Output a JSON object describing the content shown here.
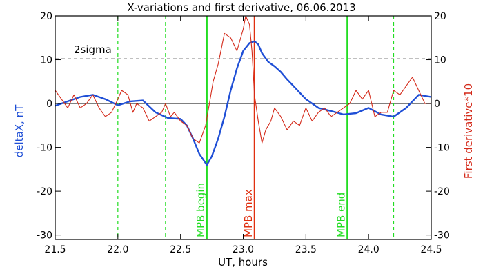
{
  "chart_data": {
    "type": "line",
    "title": "X-variations and first derivative, 06.06.2013",
    "xlabel": "UT, hours",
    "ylabel_left": "deltaX, nT",
    "ylabel_right": "First derivative*10",
    "xlim": [
      21.5,
      24.5
    ],
    "ylim": [
      -31,
      20
    ],
    "xticks": [
      "21.5",
      "22.0",
      "22.5",
      "23.0",
      "23.5",
      "24.0",
      "24.5"
    ],
    "yticks": [
      "-30",
      "-20",
      "-10",
      "0",
      "10",
      "20"
    ],
    "y2ticks": [
      "-30",
      "-20",
      "-10",
      "0",
      "10",
      "20"
    ],
    "grid": false,
    "colors": {
      "deltaX": "#1f4fd6",
      "derivative": "#d42a1a",
      "mpb_lines": "#22dd22",
      "mpb_max": "#e03010",
      "threshold": "#000000"
    },
    "threshold": {
      "label": "2sigma",
      "y": 10.2
    },
    "zero_line": 0,
    "vlines": [
      {
        "x": 22.0,
        "style": "dashed",
        "color": "#22dd22",
        "label": ""
      },
      {
        "x": 22.38,
        "style": "dashed",
        "color": "#22dd22",
        "label": ""
      },
      {
        "x": 22.71,
        "style": "solid",
        "color": "#22dd22",
        "label": "MPB begin"
      },
      {
        "x": 23.09,
        "style": "solid",
        "color": "#e03010",
        "label": "MPB max"
      },
      {
        "x": 23.83,
        "style": "solid",
        "color": "#22dd22",
        "label": "MPB end"
      },
      {
        "x": 24.2,
        "style": "dashed",
        "color": "#22dd22",
        "label": ""
      }
    ],
    "series": [
      {
        "key": "deltaX",
        "axis": "left",
        "x": [
          21.5,
          21.6,
          21.7,
          21.8,
          21.9,
          22.0,
          22.1,
          22.2,
          22.3,
          22.4,
          22.5,
          22.55,
          22.6,
          22.65,
          22.71,
          22.75,
          22.8,
          22.85,
          22.9,
          22.95,
          23.0,
          23.05,
          23.09,
          23.12,
          23.15,
          23.2,
          23.25,
          23.3,
          23.35,
          23.4,
          23.5,
          23.6,
          23.7,
          23.8,
          23.9,
          24.0,
          24.1,
          24.2,
          24.3,
          24.4,
          24.5
        ],
        "y": [
          -0.5,
          0.5,
          1.5,
          2,
          1,
          -0.4,
          0.5,
          0.7,
          -2,
          -3.3,
          -3.5,
          -5,
          -8,
          -11.5,
          -14,
          -12,
          -8,
          -3,
          3,
          8,
          12,
          13.8,
          14.2,
          13.5,
          11.5,
          9.5,
          8.5,
          7.2,
          5.5,
          4,
          1,
          -1,
          -1.7,
          -2.5,
          -2.2,
          -1,
          -2.5,
          -3,
          -1,
          2,
          1.5
        ]
      },
      {
        "key": "derivative",
        "axis": "right",
        "x": [
          21.5,
          21.55,
          21.6,
          21.65,
          21.7,
          21.75,
          21.8,
          21.85,
          21.9,
          21.95,
          22.0,
          22.03,
          22.08,
          22.12,
          22.15,
          22.2,
          22.25,
          22.3,
          22.35,
          22.38,
          22.42,
          22.45,
          22.5,
          22.55,
          22.6,
          22.65,
          22.7,
          22.73,
          22.76,
          22.8,
          22.85,
          22.9,
          22.95,
          23.0,
          23.02,
          23.05,
          23.07,
          23.09,
          23.12,
          23.15,
          23.18,
          23.22,
          23.25,
          23.3,
          23.35,
          23.4,
          23.45,
          23.5,
          23.55,
          23.6,
          23.65,
          23.7,
          23.75,
          23.8,
          23.85,
          23.9,
          23.95,
          24.0,
          24.05,
          24.1,
          24.15,
          24.2,
          24.25,
          24.3,
          24.35,
          24.4,
          24.45,
          24.5
        ],
        "y": [
          3,
          1,
          -1,
          2,
          -1,
          0,
          2,
          -1,
          -3,
          -2,
          1,
          3,
          2,
          -2,
          0,
          -1,
          -4,
          -3,
          -2,
          0,
          -3,
          -2,
          -4,
          -5,
          -8,
          -9,
          -5,
          0,
          5,
          9,
          16,
          15,
          12,
          17,
          20,
          18,
          12,
          2,
          -4,
          -9,
          -6,
          -4,
          -1,
          -3,
          -6,
          -4,
          -5,
          -1,
          -4,
          -2,
          -1,
          -3,
          -2,
          -1,
          0,
          3,
          1,
          3,
          -3,
          -2,
          -2,
          3,
          2,
          4,
          6,
          3,
          0,
          0
        ]
      }
    ]
  }
}
